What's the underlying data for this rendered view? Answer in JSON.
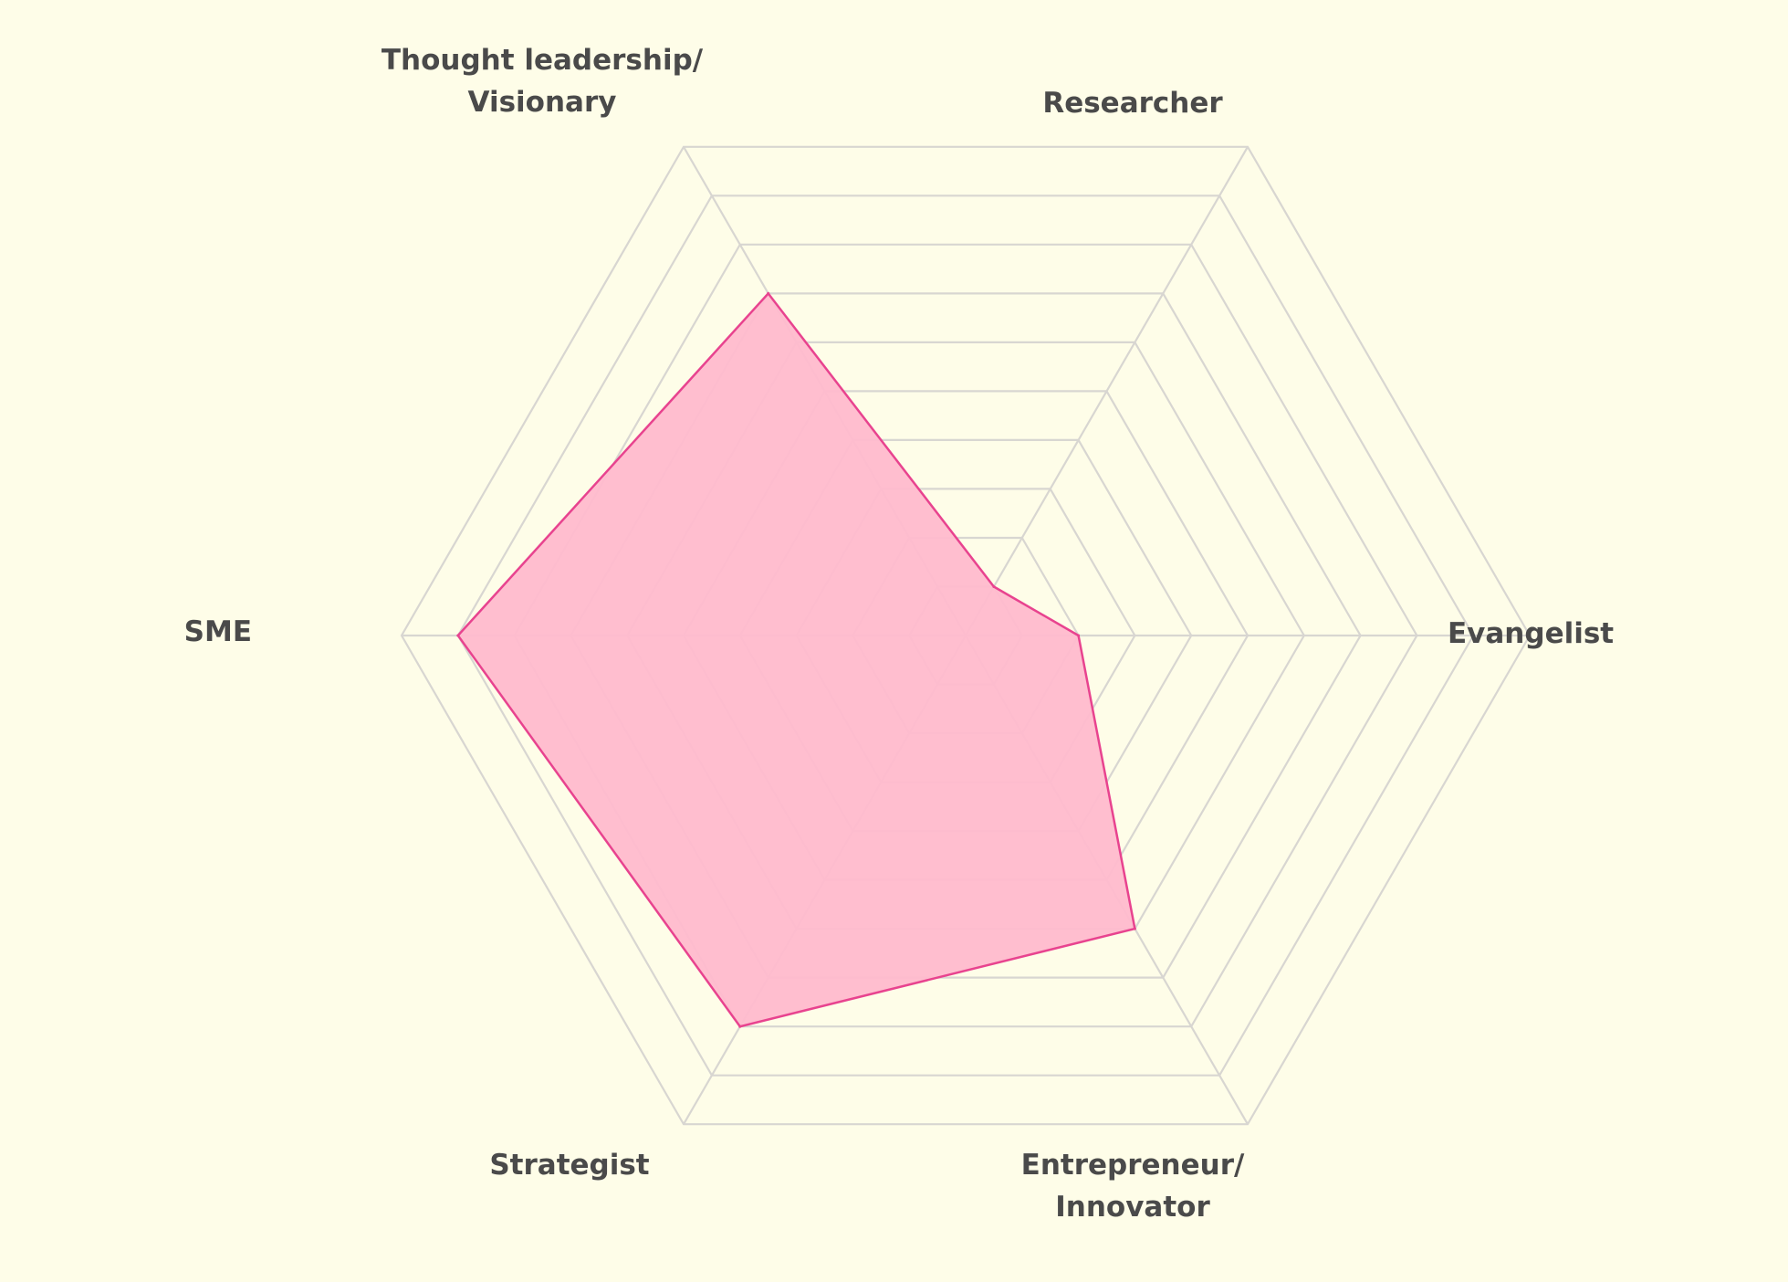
{
  "background": "#fefde8",
  "chart_data": {
    "type": "radar",
    "title": "",
    "axes": [
      {
        "label_lines": [
          "Evangelist"
        ]
      },
      {
        "label_lines": [
          "Researcher"
        ]
      },
      {
        "label_lines": [
          "Thought leadership/",
          "Visionary"
        ]
      },
      {
        "label_lines": [
          "SME"
        ]
      },
      {
        "label_lines": [
          "Strategist"
        ]
      },
      {
        "label_lines": [
          "Entrepreneur/",
          "Innovator"
        ]
      }
    ],
    "rings": 10,
    "range": [
      0,
      10
    ],
    "grid": true,
    "legend": "none",
    "series": [
      {
        "values": [
          2,
          1,
          7,
          9,
          8,
          6
        ],
        "fill": "#ffbbce",
        "stroke": "#e8438f"
      }
    ],
    "colors": {
      "grid": "#d8d6d1",
      "label": "#4a4a4a"
    }
  }
}
